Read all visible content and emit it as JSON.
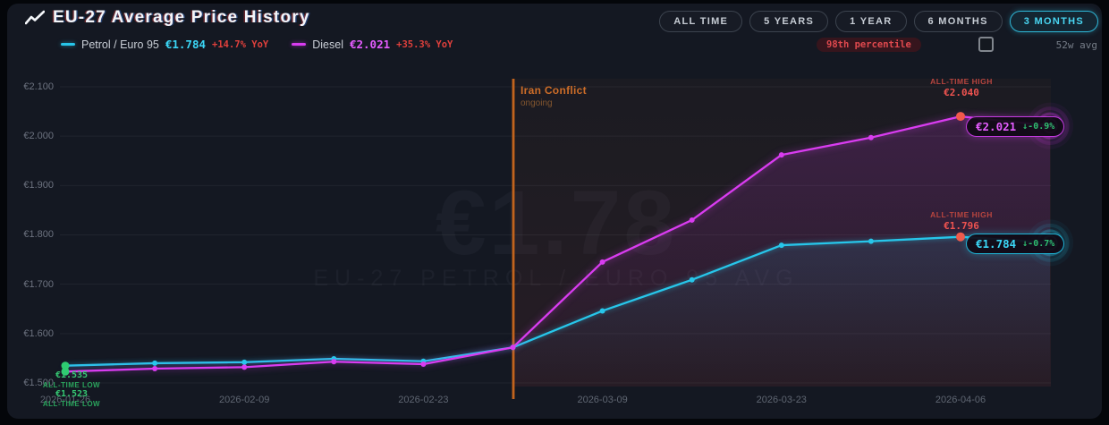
{
  "header": {
    "title": "EU-27 Average Price History",
    "legend": [
      {
        "name": "Petrol / Euro 95",
        "price": "€1.784",
        "yoy": "+14.7% YoY",
        "color": "#27c6ea"
      },
      {
        "name": "Diesel",
        "price": "€2.021",
        "yoy": "+35.3% YoY",
        "color": "#d93cf0"
      }
    ],
    "range_buttons": [
      {
        "label": "ALL TIME",
        "active": false
      },
      {
        "label": "5 YEARS",
        "active": false
      },
      {
        "label": "1 YEAR",
        "active": false
      },
      {
        "label": "6 MONTHS",
        "active": false
      },
      {
        "label": "3 MONTHS",
        "active": true
      }
    ],
    "percentile_badge": "98th percentile",
    "avg_toggle_label": "52w avg",
    "avg_checkbox_checked": false
  },
  "watermark": {
    "big": "€1.78",
    "sub": "EU-27 PETROL / EURO 95 AVG"
  },
  "chart_data": {
    "type": "line",
    "title": "EU-27 Average Price History",
    "x": [
      "2026-01-26",
      "2026-02-02",
      "2026-02-09",
      "2026-02-16",
      "2026-02-23",
      "2026-03-02",
      "2026-03-09",
      "2026-03-16",
      "2026-03-23",
      "2026-03-30",
      "2026-04-06",
      "2026-04-13"
    ],
    "series": [
      {
        "name": "Petrol / Euro 95",
        "color": "#27c6ea",
        "values": [
          1.535,
          1.54,
          1.542,
          1.549,
          1.544,
          1.572,
          1.646,
          1.709,
          1.779,
          1.787,
          1.796,
          1.784
        ]
      },
      {
        "name": "Diesel",
        "color": "#d93cf0",
        "values": [
          1.523,
          1.529,
          1.532,
          1.543,
          1.538,
          1.572,
          1.745,
          1.83,
          1.962,
          1.997,
          2.04,
          2.021
        ]
      }
    ],
    "ylim": [
      1.5,
      2.1
    ],
    "yticks": [
      {
        "label": "€2.100",
        "value": 2.1
      },
      {
        "label": "€2.000",
        "value": 2.0
      },
      {
        "label": "€1.900",
        "value": 1.9
      },
      {
        "label": "€1.800",
        "value": 1.8
      },
      {
        "label": "€1.700",
        "value": 1.7
      },
      {
        "label": "€1.600",
        "value": 1.6
      },
      {
        "label": "€1.500",
        "value": 1.5
      }
    ],
    "xtick_indices": [
      0,
      2,
      4,
      6,
      8,
      10
    ],
    "grid": true,
    "legend_position": "top-left",
    "event_marker": {
      "label": "Iran Conflict",
      "sub": "ongoing",
      "x_index": 5
    }
  },
  "annotations": {
    "diesel_high": {
      "label": "ALL-TIME HIGH",
      "value": "€2.040"
    },
    "petrol_high": {
      "label": "ALL-TIME HIGH",
      "value": "€1.796"
    },
    "petrol_low": {
      "value": "€1.535",
      "label": "ALL-TIME LOW"
    },
    "diesel_low": {
      "value": "€1.523",
      "label": "ALL-TIME LOW"
    }
  },
  "pills": {
    "diesel": {
      "price": "€2.021",
      "change": "↓-0.9%"
    },
    "petrol": {
      "price": "€1.784",
      "change": "↓-0.7%"
    }
  },
  "colors": {
    "petrol": "#27c6ea",
    "diesel": "#d93cf0",
    "red": "#ef5350",
    "green": "#2ecc71",
    "orange": "#c2661f",
    "event_low": "#f2564a"
  }
}
